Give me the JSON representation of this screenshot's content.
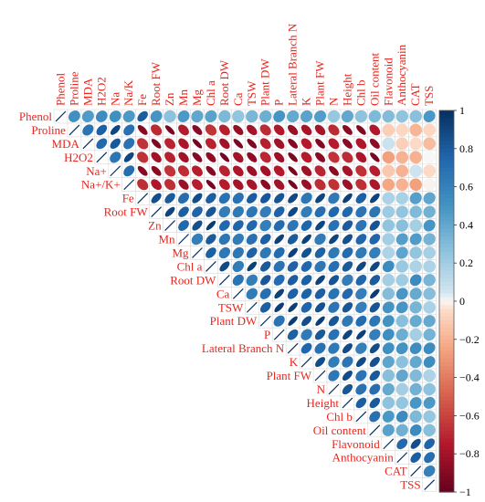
{
  "chart_data": {
    "type": "heatmap",
    "subtype": "correlation-ellipse-upper-triangle",
    "title": "",
    "variables": [
      "Phenol",
      "Proline",
      "MDA",
      "H2O2",
      "Na",
      "Na/K",
      "Fe",
      "Root FW",
      "Zn",
      "Mn",
      "Mg",
      "Chl a",
      "Root DW",
      "Ca",
      "TSW",
      "Plant DW",
      "P",
      "Lateral Branch N",
      "K",
      "Plant FW",
      "N",
      "Height",
      "Chl b",
      "Oil content",
      "Flavonoid",
      "Anthocyanin",
      "CAT",
      "TSS"
    ],
    "row_labels": [
      "Phenol",
      "Proline",
      "MDA",
      "H2O2",
      "Na+",
      "Na+/K+",
      "Fe",
      "Root FW",
      "Zn",
      "Mn",
      "Mg",
      "Chl a",
      "Root DW",
      "Ca",
      "TSW",
      "Plant DW",
      "P",
      "Lateral Branch N",
      "K",
      "Plant FW",
      "N",
      "Height",
      "Chl b",
      "Oil content",
      "Flavonoid",
      "Anthocyanin",
      "CAT",
      "TSS"
    ],
    "groups": {
      "neg_block_rows": [
        "Proline",
        "MDA",
        "H2O2",
        "Na+",
        "Na+/K+"
      ],
      "pos_block": [
        "Fe",
        "Root FW",
        "Zn",
        "Mn",
        "Mg",
        "Chl a",
        "Root DW",
        "Ca",
        "TSW",
        "Plant DW",
        "P",
        "Lateral Branch N",
        "K",
        "Plant FW",
        "N",
        "Height",
        "Chl b",
        "Oil content"
      ],
      "misc": [
        "Phenol",
        "Flavonoid",
        "Anthocyanin",
        "CAT",
        "TSS"
      ]
    },
    "color_scale": {
      "min": -1,
      "max": 1,
      "ticks": [
        "1",
        "0.8",
        "0.6",
        "0.4",
        "0.2",
        "0",
        "−0.2",
        "−0.4",
        "−0.6",
        "−0.8",
        "−1"
      ],
      "neg_color": "#67001f",
      "zero_color": "#f7f7f7",
      "pos_color": "#053061"
    },
    "legend": "right",
    "diagonal": 1
  }
}
